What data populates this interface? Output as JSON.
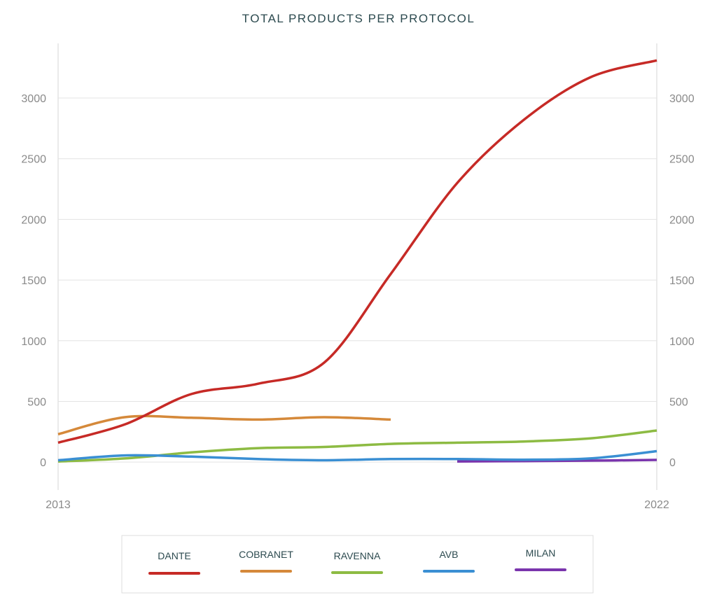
{
  "chart_data": {
    "type": "line",
    "title": "TOTAL PRODUCTS PER PROTOCOL",
    "xlabel": "",
    "ylabel": "",
    "x_tick_labels": [
      "2013",
      "2022"
    ],
    "x": [
      2013,
      2014,
      2015,
      2016,
      2017,
      2018,
      2019,
      2020,
      2021,
      2022
    ],
    "xlim": [
      2013,
      2022
    ],
    "ylim": [
      -230,
      3450
    ],
    "y_ticks": [
      0,
      500,
      1000,
      1500,
      2000,
      2500,
      3000
    ],
    "grid": true,
    "dual_y_axis": true,
    "legend_position": "bottom",
    "series": [
      {
        "name": "DANTE",
        "color": "#c62a26",
        "points": [
          [
            2013,
            160
          ],
          [
            2014,
            310
          ],
          [
            2015,
            560
          ],
          [
            2016,
            645
          ],
          [
            2017,
            820
          ],
          [
            2018,
            1550
          ],
          [
            2019,
            2300
          ],
          [
            2020,
            2820
          ],
          [
            2021,
            3170
          ],
          [
            2022,
            3310
          ]
        ]
      },
      {
        "name": "COBRANET",
        "color": "#d5893a",
        "points": [
          [
            2013,
            230
          ],
          [
            2014,
            370
          ],
          [
            2015,
            365
          ],
          [
            2016,
            350
          ],
          [
            2017,
            370
          ],
          [
            2018,
            350
          ]
        ]
      },
      {
        "name": "RAVENNA",
        "color": "#8dbb43",
        "points": [
          [
            2013,
            5
          ],
          [
            2014,
            30
          ],
          [
            2015,
            80
          ],
          [
            2016,
            115
          ],
          [
            2017,
            125
          ],
          [
            2018,
            150
          ],
          [
            2019,
            160
          ],
          [
            2020,
            170
          ],
          [
            2021,
            195
          ],
          [
            2022,
            260
          ]
        ]
      },
      {
        "name": "AVB",
        "color": "#3a8fd3",
        "points": [
          [
            2013,
            15
          ],
          [
            2014,
            55
          ],
          [
            2015,
            45
          ],
          [
            2016,
            25
          ],
          [
            2017,
            15
          ],
          [
            2018,
            25
          ],
          [
            2019,
            25
          ],
          [
            2020,
            20
          ],
          [
            2021,
            30
          ],
          [
            2022,
            90
          ]
        ]
      },
      {
        "name": "MILAN",
        "color": "#7a35ad",
        "points": [
          [
            2019,
            5
          ],
          [
            2020,
            8
          ],
          [
            2021,
            12
          ],
          [
            2022,
            18
          ]
        ]
      }
    ]
  }
}
